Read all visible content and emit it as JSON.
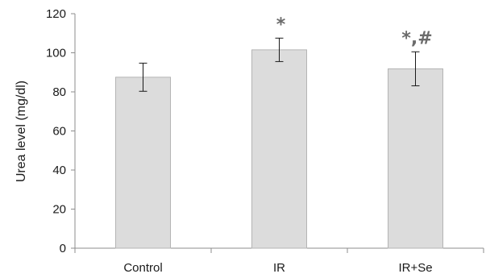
{
  "chart_data": {
    "type": "bar",
    "title": "",
    "xlabel": "",
    "ylabel": "Urea level (mg/dl)",
    "categories": [
      "Control",
      "IR",
      "IR+Se"
    ],
    "values": [
      87.5,
      101.5,
      91.8
    ],
    "errors": [
      7.2,
      6.0,
      8.7
    ],
    "significance": [
      "",
      "*",
      "*,#"
    ],
    "ylim": [
      0,
      120
    ],
    "yticks": [
      0,
      20,
      40,
      60,
      80,
      100,
      120
    ],
    "grid": false,
    "legend": "none",
    "colors": {
      "bar_fill": "#dcdcdc",
      "bar_stroke": "#b4b4b4",
      "axis": "#8c8c8c",
      "error_bar": "#1a1a1a",
      "significance": "#6b6b6b"
    }
  }
}
